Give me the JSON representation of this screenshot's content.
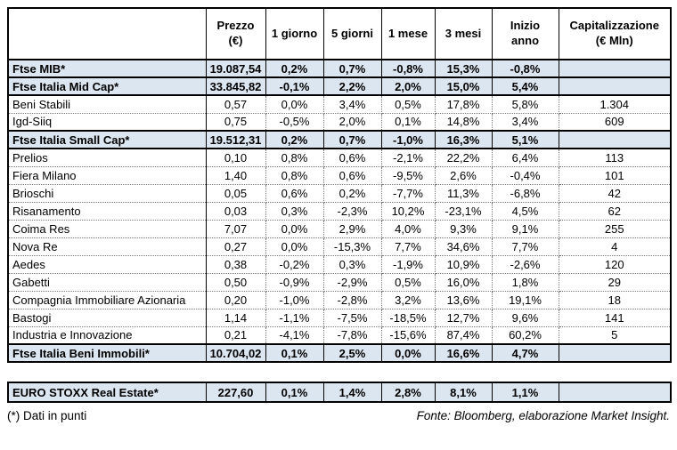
{
  "table": {
    "headers": [
      "",
      "Prezzo\n(€)",
      "1 giorno",
      "5 giorni",
      "1 mese",
      "3 mesi",
      "Inizio anno",
      "Capitalizzazione\n(€ Mln)"
    ],
    "rows": [
      {
        "type": "index",
        "name": "Ftse MIB*",
        "values": [
          "19.087,54",
          "0,2%",
          "0,7%",
          "-0,8%",
          "15,3%",
          "-0,8%",
          ""
        ]
      },
      {
        "type": "index",
        "name": "Ftse Italia Mid Cap*",
        "values": [
          "33.845,82",
          "-0,1%",
          "2,2%",
          "2,0%",
          "15,0%",
          "5,4%",
          ""
        ]
      },
      {
        "type": "company",
        "name": "Beni Stabili",
        "values": [
          "0,57",
          "0,0%",
          "3,4%",
          "0,5%",
          "17,8%",
          "5,8%",
          "1.304"
        ]
      },
      {
        "type": "company",
        "name": "Igd-Siiq",
        "values": [
          "0,75",
          "-0,5%",
          "2,0%",
          "0,1%",
          "14,8%",
          "3,4%",
          "609"
        ]
      },
      {
        "type": "index",
        "name": "Ftse Italia Small Cap*",
        "values": [
          "19.512,31",
          "0,2%",
          "0,7%",
          "-1,0%",
          "16,3%",
          "5,1%",
          ""
        ]
      },
      {
        "type": "company",
        "name": "Prelios",
        "values": [
          "0,10",
          "0,8%",
          "0,6%",
          "-2,1%",
          "22,2%",
          "6,4%",
          "113"
        ]
      },
      {
        "type": "company",
        "name": "Fiera Milano",
        "values": [
          "1,40",
          "0,8%",
          "0,6%",
          "-9,5%",
          "2,6%",
          "-0,4%",
          "101"
        ]
      },
      {
        "type": "company",
        "name": "Brioschi",
        "values": [
          "0,05",
          "0,6%",
          "0,2%",
          "-7,7%",
          "11,3%",
          "-6,8%",
          "42"
        ]
      },
      {
        "type": "company",
        "name": "Risanamento",
        "values": [
          "0,03",
          "0,3%",
          "-2,3%",
          "10,2%",
          "-23,1%",
          "4,5%",
          "62"
        ]
      },
      {
        "type": "company",
        "name": "Coima Res",
        "values": [
          "7,07",
          "0,0%",
          "2,9%",
          "4,0%",
          "9,3%",
          "9,1%",
          "255"
        ]
      },
      {
        "type": "company",
        "name": "Nova Re",
        "values": [
          "0,27",
          "0,0%",
          "-15,3%",
          "7,7%",
          "34,6%",
          "7,7%",
          "4"
        ]
      },
      {
        "type": "company",
        "name": "Aedes",
        "values": [
          "0,38",
          "-0,2%",
          "0,3%",
          "-1,9%",
          "10,9%",
          "-2,6%",
          "120"
        ]
      },
      {
        "type": "company",
        "name": "Gabetti",
        "values": [
          "0,50",
          "-0,9%",
          "-2,9%",
          "0,5%",
          "16,0%",
          "1,8%",
          "29"
        ]
      },
      {
        "type": "company",
        "name": "Compagnia Immobiliare Azionaria",
        "values": [
          "0,20",
          "-1,0%",
          "-2,8%",
          "3,2%",
          "13,6%",
          "19,1%",
          "18"
        ]
      },
      {
        "type": "company",
        "name": "Bastogi",
        "values": [
          "1,14",
          "-1,1%",
          "-7,5%",
          "-18,5%",
          "12,7%",
          "9,6%",
          "141"
        ]
      },
      {
        "type": "company",
        "name": "Industria e Innovazione",
        "values": [
          "0,21",
          "-4,1%",
          "-7,8%",
          "-15,6%",
          "87,4%",
          "60,2%",
          "5"
        ]
      },
      {
        "type": "index",
        "name": "Ftse Italia Beni Immobili*",
        "values": [
          "10.704,02",
          "0,1%",
          "2,5%",
          "0,0%",
          "16,6%",
          "4,7%",
          ""
        ]
      }
    ]
  },
  "euro_stoxx_table": {
    "rows": [
      {
        "type": "index",
        "name": "EURO STOXX Real Estate*",
        "values": [
          "227,60",
          "0,1%",
          "1,4%",
          "2,8%",
          "8,1%",
          "1,1%",
          ""
        ]
      }
    ]
  },
  "footer": {
    "note": "(*) Dati in punti",
    "source": "Fonte: Bloomberg, elaborazione Market Insight."
  },
  "colors": {
    "index_row_bg": "#dce6f1",
    "border": "#000000"
  }
}
